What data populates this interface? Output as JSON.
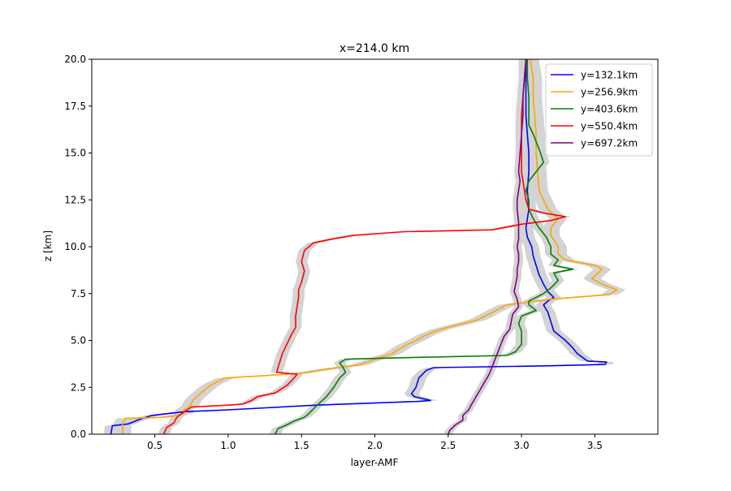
{
  "chart_data": {
    "type": "line",
    "title": "x=214.0 km",
    "xlabel": "layer-AMF",
    "ylabel": "z [km]",
    "xlim": [
      0.07,
      3.93
    ],
    "ylim": [
      0,
      20
    ],
    "xticks": [
      0.5,
      1.0,
      1.5,
      2.0,
      2.5,
      3.0,
      3.5
    ],
    "xtick_labels": [
      "0.5",
      "1.0",
      "1.5",
      "2.0",
      "2.5",
      "3.0",
      "3.5"
    ],
    "yticks": [
      0.0,
      2.5,
      5.0,
      7.5,
      10.0,
      12.5,
      15.0,
      17.5,
      20.0
    ],
    "ytick_labels": [
      "0.0",
      "2.5",
      "5.0",
      "7.5",
      "10.0",
      "12.5",
      "15.0",
      "17.5",
      "20.0"
    ],
    "grid": false,
    "legend_position": "top-right",
    "uncertainty_band_color": "#d3d3d3",
    "series": [
      {
        "name": "y=132.1km",
        "color": "#0000ff",
        "band": 0.05,
        "points": [
          [
            0.2,
            0
          ],
          [
            0.21,
            0.45
          ],
          [
            0.32,
            0.55
          ],
          [
            0.4,
            0.8
          ],
          [
            0.48,
            1.0
          ],
          [
            0.7,
            1.2
          ],
          [
            1.0,
            1.3
          ],
          [
            1.6,
            1.55
          ],
          [
            2.3,
            1.75
          ],
          [
            2.38,
            1.8
          ],
          [
            2.27,
            2.0
          ],
          [
            2.25,
            2.15
          ],
          [
            2.28,
            2.5
          ],
          [
            2.3,
            3.0
          ],
          [
            2.35,
            3.4
          ],
          [
            2.4,
            3.55
          ],
          [
            3.2,
            3.65
          ],
          [
            3.57,
            3.72
          ],
          [
            3.58,
            3.85
          ],
          [
            3.45,
            3.9
          ],
          [
            3.38,
            4.3
          ],
          [
            3.35,
            4.6
          ],
          [
            3.3,
            5.0
          ],
          [
            3.22,
            5.5
          ],
          [
            3.2,
            6.0
          ],
          [
            3.18,
            6.5
          ],
          [
            3.15,
            6.9
          ],
          [
            3.18,
            7.1
          ],
          [
            3.22,
            7.3
          ],
          [
            3.18,
            7.6
          ],
          [
            3.15,
            8.0
          ],
          [
            3.12,
            8.5
          ],
          [
            3.1,
            9.0
          ],
          [
            3.08,
            9.5
          ],
          [
            3.07,
            10.0
          ],
          [
            3.04,
            10.5
          ],
          [
            3.03,
            11.0
          ],
          [
            3.05,
            12.0
          ],
          [
            3.04,
            13.0
          ],
          [
            3.05,
            14.0
          ],
          [
            3.05,
            15.0
          ],
          [
            3.04,
            16.0
          ],
          [
            3.03,
            17.0
          ],
          [
            3.03,
            18.0
          ],
          [
            3.03,
            19.0
          ],
          [
            3.03,
            20.0
          ]
        ]
      },
      {
        "name": "y=256.9km",
        "color": "#ffa500",
        "band": 0.06,
        "points": [
          [
            0.28,
            0
          ],
          [
            0.28,
            0.6
          ],
          [
            0.3,
            0.85
          ],
          [
            0.5,
            0.88
          ],
          [
            0.62,
            0.95
          ],
          [
            0.7,
            1.1
          ],
          [
            0.7,
            1.3
          ],
          [
            0.74,
            1.5
          ],
          [
            0.76,
            1.8
          ],
          [
            0.8,
            2.1
          ],
          [
            0.86,
            2.5
          ],
          [
            0.9,
            2.7
          ],
          [
            0.98,
            3.0
          ],
          [
            1.2,
            3.1
          ],
          [
            1.5,
            3.25
          ],
          [
            1.7,
            3.5
          ],
          [
            1.9,
            3.7
          ],
          [
            2.0,
            4.0
          ],
          [
            2.12,
            4.3
          ],
          [
            2.2,
            4.7
          ],
          [
            2.28,
            5.0
          ],
          [
            2.35,
            5.3
          ],
          [
            2.45,
            5.6
          ],
          [
            2.6,
            5.9
          ],
          [
            2.7,
            6.1
          ],
          [
            2.8,
            6.5
          ],
          [
            2.9,
            6.9
          ],
          [
            3.2,
            7.2
          ],
          [
            3.6,
            7.45
          ],
          [
            3.65,
            7.7
          ],
          [
            3.55,
            8.0
          ],
          [
            3.48,
            8.3
          ],
          [
            3.55,
            8.8
          ],
          [
            3.5,
            9.0
          ],
          [
            3.3,
            9.3
          ],
          [
            3.25,
            9.6
          ],
          [
            3.25,
            10.0
          ],
          [
            3.2,
            10.6
          ],
          [
            3.2,
            11.0
          ],
          [
            3.25,
            11.5
          ],
          [
            3.18,
            12.0
          ],
          [
            3.15,
            12.5
          ],
          [
            3.12,
            13.0
          ],
          [
            3.11,
            14.0
          ],
          [
            3.1,
            15.0
          ],
          [
            3.1,
            16.0
          ],
          [
            3.09,
            17.0
          ],
          [
            3.08,
            18.0
          ],
          [
            3.08,
            19.0
          ],
          [
            3.06,
            20.0
          ]
        ]
      },
      {
        "name": "y=403.6km",
        "color": "#008000",
        "band": 0.04,
        "points": [
          [
            1.32,
            0
          ],
          [
            1.34,
            0.3
          ],
          [
            1.4,
            0.5
          ],
          [
            1.45,
            0.7
          ],
          [
            1.52,
            0.9
          ],
          [
            1.55,
            1.1
          ],
          [
            1.6,
            1.5
          ],
          [
            1.67,
            2.0
          ],
          [
            1.72,
            2.5
          ],
          [
            1.76,
            3.0
          ],
          [
            1.8,
            3.3
          ],
          [
            1.78,
            3.6
          ],
          [
            1.76,
            3.8
          ],
          [
            1.8,
            4.0
          ],
          [
            2.3,
            4.1
          ],
          [
            2.9,
            4.2
          ],
          [
            2.96,
            4.4
          ],
          [
            3.0,
            4.8
          ],
          [
            3.0,
            5.2
          ],
          [
            3.0,
            5.5
          ],
          [
            2.98,
            5.9
          ],
          [
            3.0,
            6.3
          ],
          [
            3.1,
            6.6
          ],
          [
            3.05,
            6.9
          ],
          [
            3.05,
            7.1
          ],
          [
            3.15,
            7.5
          ],
          [
            3.2,
            7.8
          ],
          [
            3.25,
            8.2
          ],
          [
            3.22,
            8.6
          ],
          [
            3.35,
            8.8
          ],
          [
            3.22,
            9.0
          ],
          [
            3.25,
            9.3
          ],
          [
            3.2,
            9.6
          ],
          [
            3.2,
            10.0
          ],
          [
            3.17,
            10.5
          ],
          [
            3.12,
            11.0
          ],
          [
            3.08,
            11.5
          ],
          [
            3.05,
            12.0
          ],
          [
            3.05,
            12.5
          ],
          [
            3.03,
            13.0
          ],
          [
            3.05,
            13.5
          ],
          [
            3.1,
            14.0
          ],
          [
            3.15,
            14.5
          ],
          [
            3.13,
            15.0
          ],
          [
            3.08,
            16.0
          ],
          [
            3.05,
            16.5
          ],
          [
            3.05,
            17.0
          ],
          [
            3.05,
            18.0
          ],
          [
            3.04,
            19.0
          ],
          [
            3.04,
            20.0
          ]
        ]
      },
      {
        "name": "y=550.4km",
        "color": "#ff0000",
        "band": 0.04,
        "points": [
          [
            0.56,
            0
          ],
          [
            0.58,
            0.35
          ],
          [
            0.63,
            0.6
          ],
          [
            0.65,
            0.9
          ],
          [
            0.7,
            1.2
          ],
          [
            0.75,
            1.45
          ],
          [
            1.0,
            1.55
          ],
          [
            1.1,
            1.6
          ],
          [
            1.16,
            1.8
          ],
          [
            1.2,
            2.0
          ],
          [
            1.32,
            2.2
          ],
          [
            1.4,
            2.6
          ],
          [
            1.45,
            3.0
          ],
          [
            1.47,
            3.2
          ],
          [
            1.33,
            3.3
          ],
          [
            1.35,
            3.8
          ],
          [
            1.37,
            4.3
          ],
          [
            1.4,
            4.8
          ],
          [
            1.43,
            5.3
          ],
          [
            1.46,
            5.7
          ],
          [
            1.46,
            6.3
          ],
          [
            1.47,
            6.8
          ],
          [
            1.48,
            7.3
          ],
          [
            1.48,
            7.7
          ],
          [
            1.5,
            8.1
          ],
          [
            1.52,
            8.7
          ],
          [
            1.5,
            9.2
          ],
          [
            1.52,
            9.8
          ],
          [
            1.58,
            10.2
          ],
          [
            1.7,
            10.4
          ],
          [
            1.85,
            10.6
          ],
          [
            2.2,
            10.8
          ],
          [
            2.8,
            10.9
          ],
          [
            3.0,
            11.2
          ],
          [
            3.2,
            11.4
          ],
          [
            3.3,
            11.6
          ],
          [
            3.15,
            11.8
          ],
          [
            3.05,
            12.0
          ],
          [
            3.03,
            12.5
          ],
          [
            3.02,
            13.0
          ],
          [
            3.0,
            14.0
          ],
          [
            3.0,
            15.0
          ],
          [
            3.0,
            16.0
          ],
          [
            3.0,
            17.0
          ],
          [
            3.01,
            18.0
          ],
          [
            3.02,
            19.0
          ],
          [
            3.03,
            20.0
          ]
        ]
      },
      {
        "name": "y=697.2km",
        "color": "#800080",
        "band": 0.03,
        "points": [
          [
            2.5,
            0
          ],
          [
            2.51,
            0.2
          ],
          [
            2.55,
            0.5
          ],
          [
            2.6,
            0.75
          ],
          [
            2.6,
            1.0
          ],
          [
            2.64,
            1.3
          ],
          [
            2.66,
            1.6
          ],
          [
            2.69,
            2.0
          ],
          [
            2.72,
            2.4
          ],
          [
            2.75,
            2.8
          ],
          [
            2.78,
            3.2
          ],
          [
            2.8,
            3.6
          ],
          [
            2.82,
            4.0
          ],
          [
            2.84,
            4.4
          ],
          [
            2.86,
            4.8
          ],
          [
            2.88,
            5.2
          ],
          [
            2.92,
            5.6
          ],
          [
            2.93,
            6.0
          ],
          [
            2.94,
            6.4
          ],
          [
            2.98,
            6.8
          ],
          [
            2.97,
            7.2
          ],
          [
            2.95,
            7.6
          ],
          [
            2.96,
            8.0
          ],
          [
            2.97,
            8.4
          ],
          [
            2.97,
            8.8
          ],
          [
            2.98,
            9.2
          ],
          [
            2.98,
            9.6
          ],
          [
            2.97,
            10.0
          ],
          [
            2.98,
            10.4
          ],
          [
            2.98,
            10.8
          ],
          [
            2.98,
            11.3
          ],
          [
            2.97,
            12.0
          ],
          [
            2.97,
            12.5
          ],
          [
            2.98,
            13.0
          ],
          [
            2.99,
            13.5
          ],
          [
            2.98,
            14.0
          ],
          [
            2.99,
            15.0
          ],
          [
            3.0,
            16.0
          ],
          [
            3.01,
            17.0
          ],
          [
            3.01,
            18.0
          ],
          [
            3.02,
            19.0
          ],
          [
            3.03,
            20.0
          ]
        ]
      }
    ]
  }
}
